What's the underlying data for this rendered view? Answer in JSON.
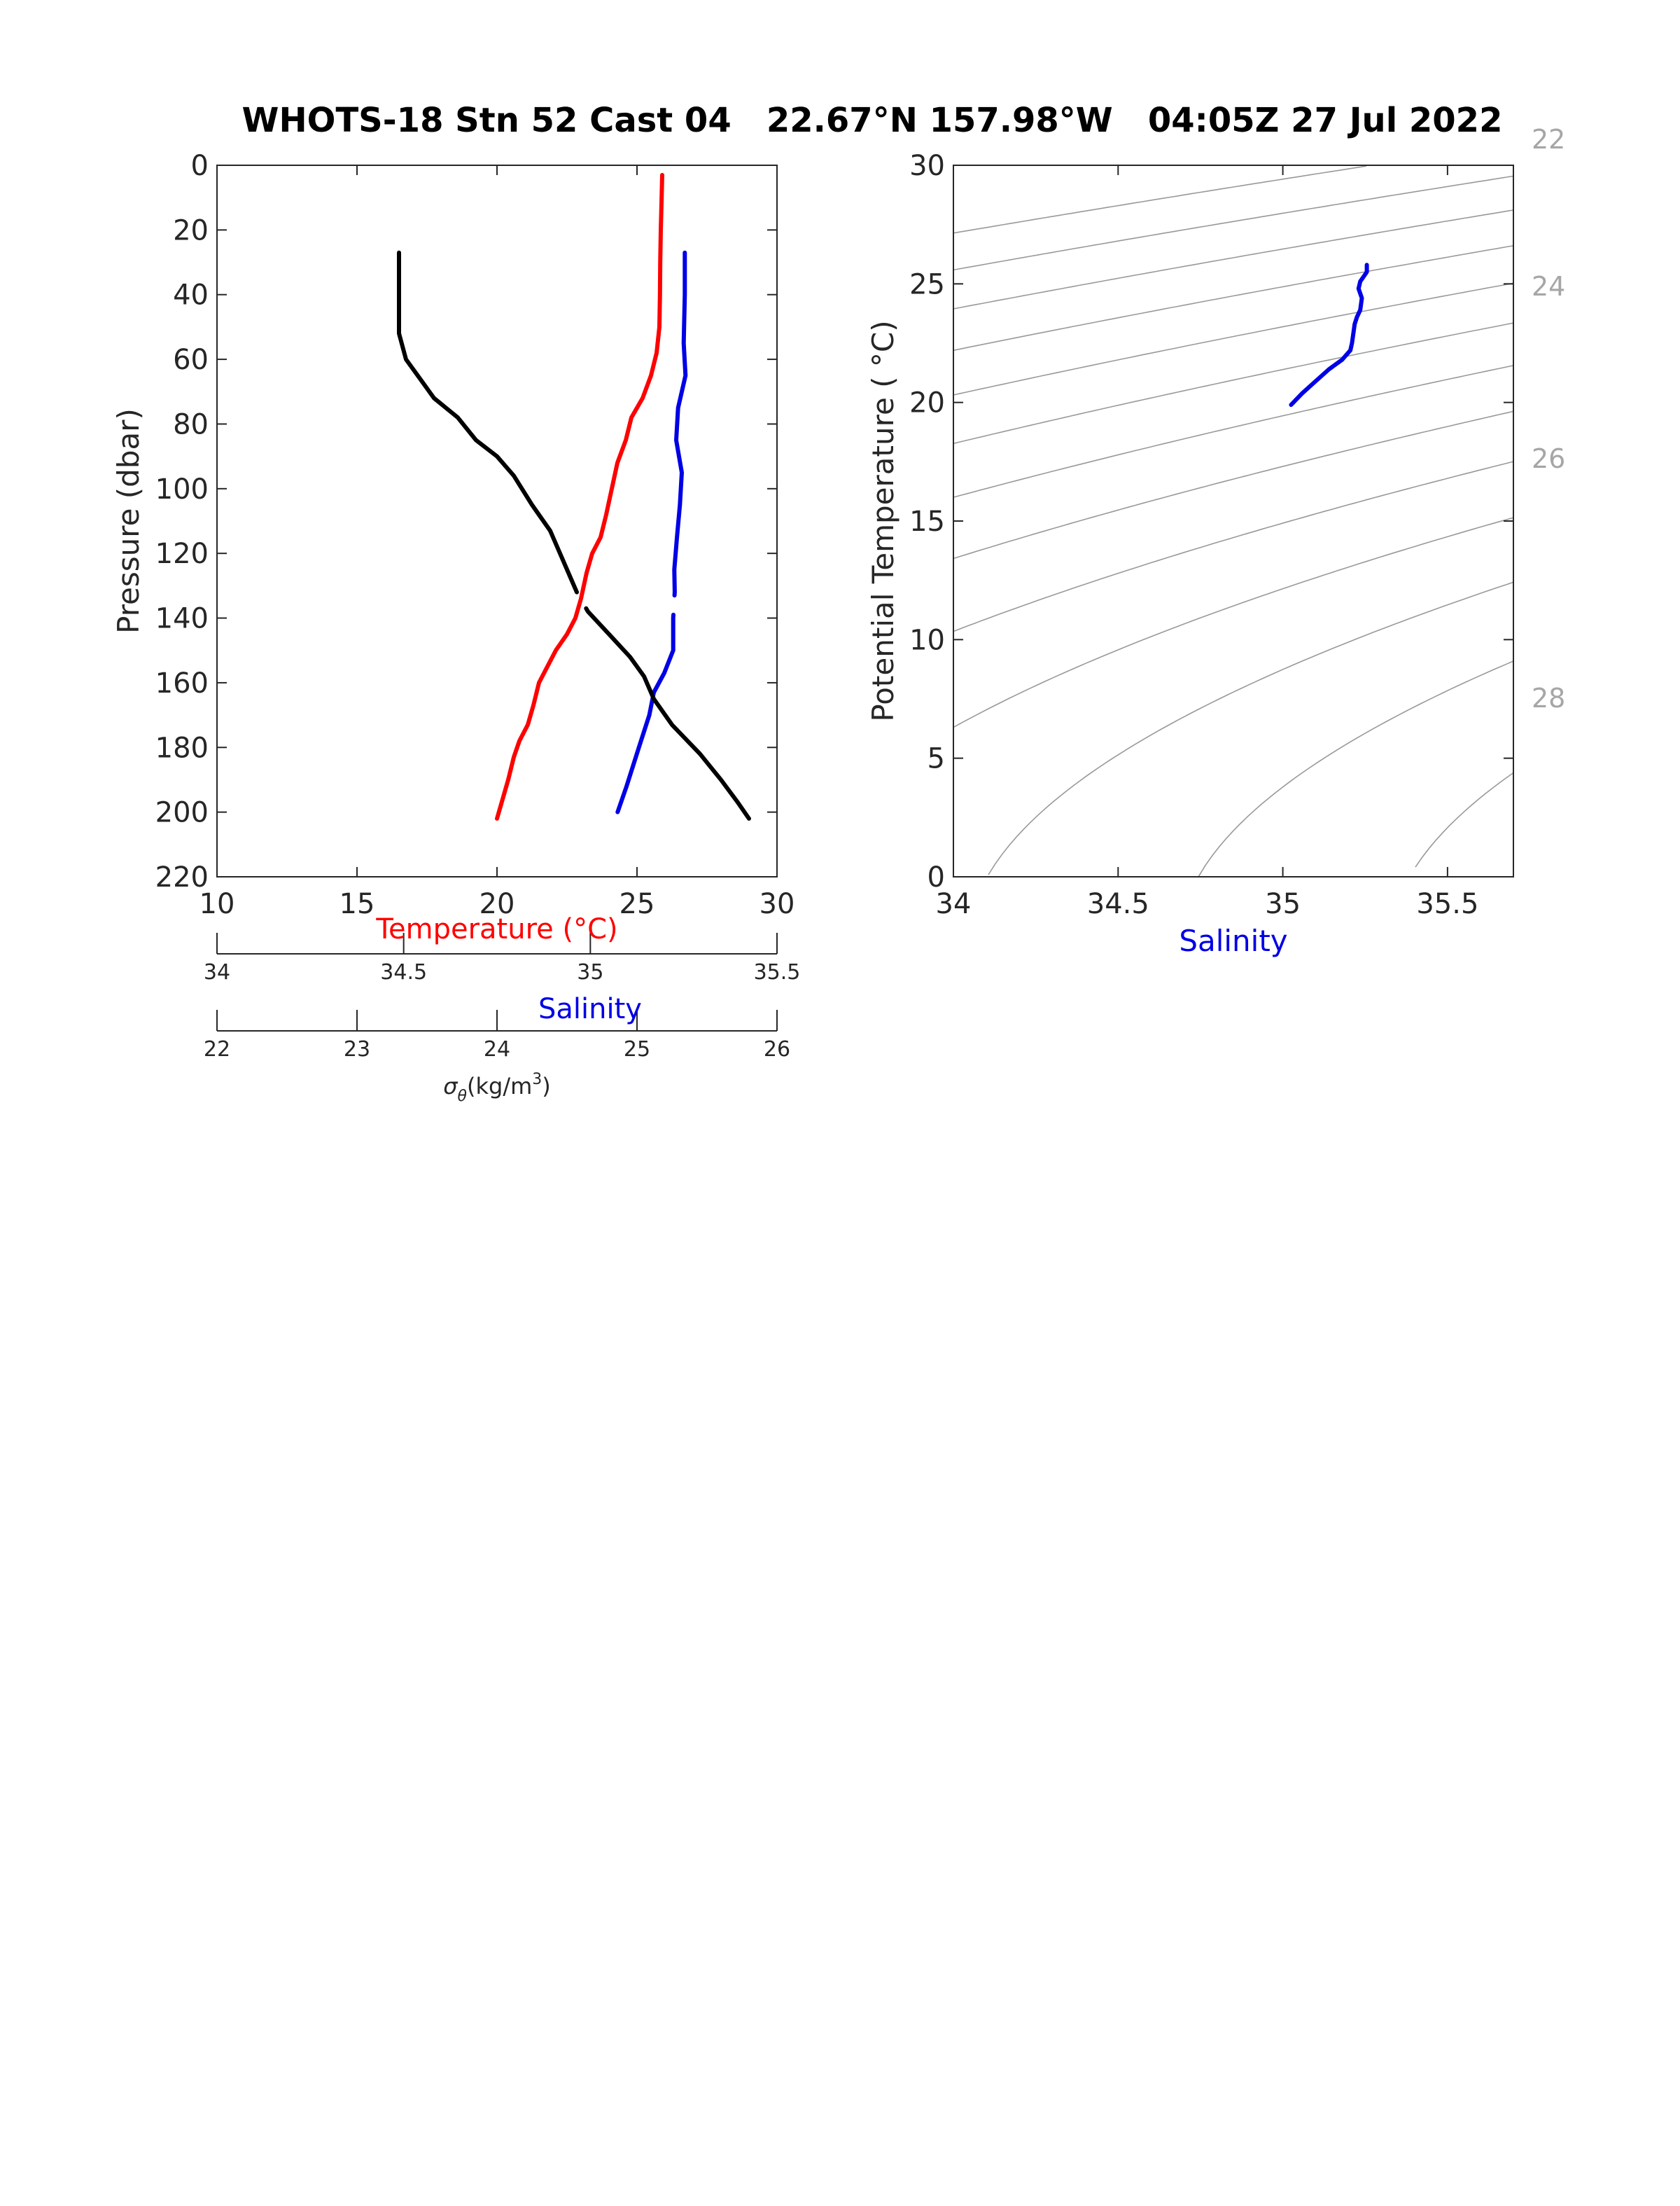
{
  "figure": {
    "title": "WHOTS-18 Stn 52 Cast 04   22.67°N 157.98°W   04:05Z 27 Jul 2022"
  },
  "colors": {
    "temperature": "#ff0000",
    "salinity": "#0000e6",
    "density": "#000000",
    "axis": "#262626",
    "isopycnal": "#999999",
    "isopycnal_label": "#a6a6a6"
  },
  "chart_data": [
    {
      "type": "line",
      "name": "profile",
      "ylabel": "Pressure (dbar)",
      "ylim": [
        0,
        220
      ],
      "yticks": [
        0,
        20,
        40,
        60,
        80,
        100,
        120,
        140,
        160,
        180,
        200,
        220
      ],
      "y_reversed": true,
      "grid": false,
      "axes": [
        {
          "key": "temperature",
          "label": "Temperature (°C)",
          "range": [
            10,
            30
          ],
          "ticks": [
            "10",
            "15",
            "20",
            "25",
            "30"
          ]
        },
        {
          "key": "salinity",
          "label": "Salinity",
          "range": [
            34,
            35.5
          ],
          "ticks": [
            "34",
            "34.5",
            "35",
            "35.5"
          ]
        },
        {
          "key": "density",
          "label_main": "σ",
          "label_sub": "θ",
          "label_unit": "(kg/m",
          "label_sup": "3",
          "label_close": ")",
          "range": [
            22,
            26
          ],
          "ticks": [
            "22",
            "23",
            "24",
            "25",
            "26"
          ]
        }
      ],
      "series": [
        {
          "key": "temperature",
          "axis": "temperature",
          "gap": [
            129,
            140
          ],
          "points": [
            [
              25.9,
              3
            ],
            [
              25.88,
              10
            ],
            [
              25.85,
              20
            ],
            [
              25.83,
              30
            ],
            [
              25.82,
              40
            ],
            [
              25.8,
              50
            ],
            [
              25.7,
              58
            ],
            [
              25.5,
              65
            ],
            [
              25.2,
              72
            ],
            [
              24.8,
              78
            ],
            [
              24.6,
              85
            ],
            [
              24.3,
              92
            ],
            [
              24.1,
              100
            ],
            [
              23.9,
              108
            ],
            [
              23.7,
              115
            ],
            [
              23.4,
              120
            ],
            [
              23.2,
              126
            ],
            [
              23.0,
              134
            ],
            [
              22.8,
              140
            ],
            [
              22.5,
              145
            ],
            [
              22.1,
              150
            ],
            [
              21.8,
              155
            ],
            [
              21.5,
              160
            ],
            [
              21.3,
              167
            ],
            [
              21.1,
              173
            ],
            [
              20.8,
              178
            ],
            [
              20.6,
              183
            ],
            [
              20.4,
              190
            ],
            [
              20.2,
              196
            ],
            [
              20.0,
              202
            ]
          ]
        },
        {
          "key": "salinity",
          "axis": "salinity",
          "gap": [
            133,
            139
          ],
          "points": [
            [
              35.253,
              27
            ],
            [
              35.253,
              40
            ],
            [
              35.25,
              55
            ],
            [
              35.255,
              65
            ],
            [
              35.235,
              75
            ],
            [
              35.23,
              85
            ],
            [
              35.245,
              95
            ],
            [
              35.24,
              105
            ],
            [
              35.232,
              115
            ],
            [
              35.225,
              125
            ],
            [
              35.226,
              132
            ],
            [
              35.222,
              140
            ],
            [
              35.222,
              150
            ],
            [
              35.198,
              157
            ],
            [
              35.17,
              163
            ],
            [
              35.158,
              170
            ],
            [
              35.13,
              180
            ],
            [
              35.097,
              192
            ],
            [
              35.073,
              200
            ]
          ]
        },
        {
          "key": "density",
          "axis": "density",
          "gap": [
            132,
            137
          ],
          "points": [
            [
              23.3,
              27
            ],
            [
              23.3,
              40
            ],
            [
              23.3,
              52
            ],
            [
              23.35,
              60
            ],
            [
              23.45,
              66
            ],
            [
              23.55,
              72
            ],
            [
              23.72,
              78
            ],
            [
              23.85,
              85
            ],
            [
              24.0,
              90
            ],
            [
              24.12,
              96
            ],
            [
              24.25,
              105
            ],
            [
              24.38,
              113
            ],
            [
              24.45,
              120
            ],
            [
              24.52,
              127
            ],
            [
              24.57,
              132
            ],
            [
              24.65,
              138
            ],
            [
              24.8,
              145
            ],
            [
              24.95,
              152
            ],
            [
              25.05,
              158
            ],
            [
              25.12,
              165
            ],
            [
              25.25,
              173
            ],
            [
              25.45,
              182
            ],
            [
              25.6,
              190
            ],
            [
              25.72,
              197
            ],
            [
              25.8,
              202
            ]
          ]
        }
      ]
    },
    {
      "type": "line",
      "name": "ts_diagram",
      "xlabel": "Salinity",
      "ylabel": "Potential Temperature ( °C)",
      "xlim": [
        34,
        35.7
      ],
      "ylim": [
        0,
        30
      ],
      "xticks": [
        "34",
        "34.5",
        "35",
        "35.5"
      ],
      "yticks": [
        "0",
        "5",
        "10",
        "15",
        "20",
        "25",
        "30"
      ],
      "isopycnal_labels": [
        "22",
        "24",
        "26",
        "28"
      ],
      "series": [
        {
          "key": "ts_profile",
          "points": [
            [
              35.025,
              19.9
            ],
            [
              35.06,
              20.4
            ],
            [
              35.1,
              20.9
            ],
            [
              35.14,
              21.4
            ],
            [
              35.18,
              21.8
            ],
            [
              35.205,
              22.2
            ],
            [
              35.21,
              22.5
            ],
            [
              35.215,
              23.0
            ],
            [
              35.218,
              23.3
            ],
            [
              35.225,
              23.6
            ],
            [
              35.235,
              23.9
            ],
            [
              35.24,
              24.4
            ],
            [
              35.23,
              24.8
            ],
            [
              35.235,
              25.1
            ],
            [
              35.245,
              25.3
            ],
            [
              35.255,
              25.5
            ],
            [
              35.255,
              25.8
            ]
          ]
        }
      ]
    }
  ]
}
